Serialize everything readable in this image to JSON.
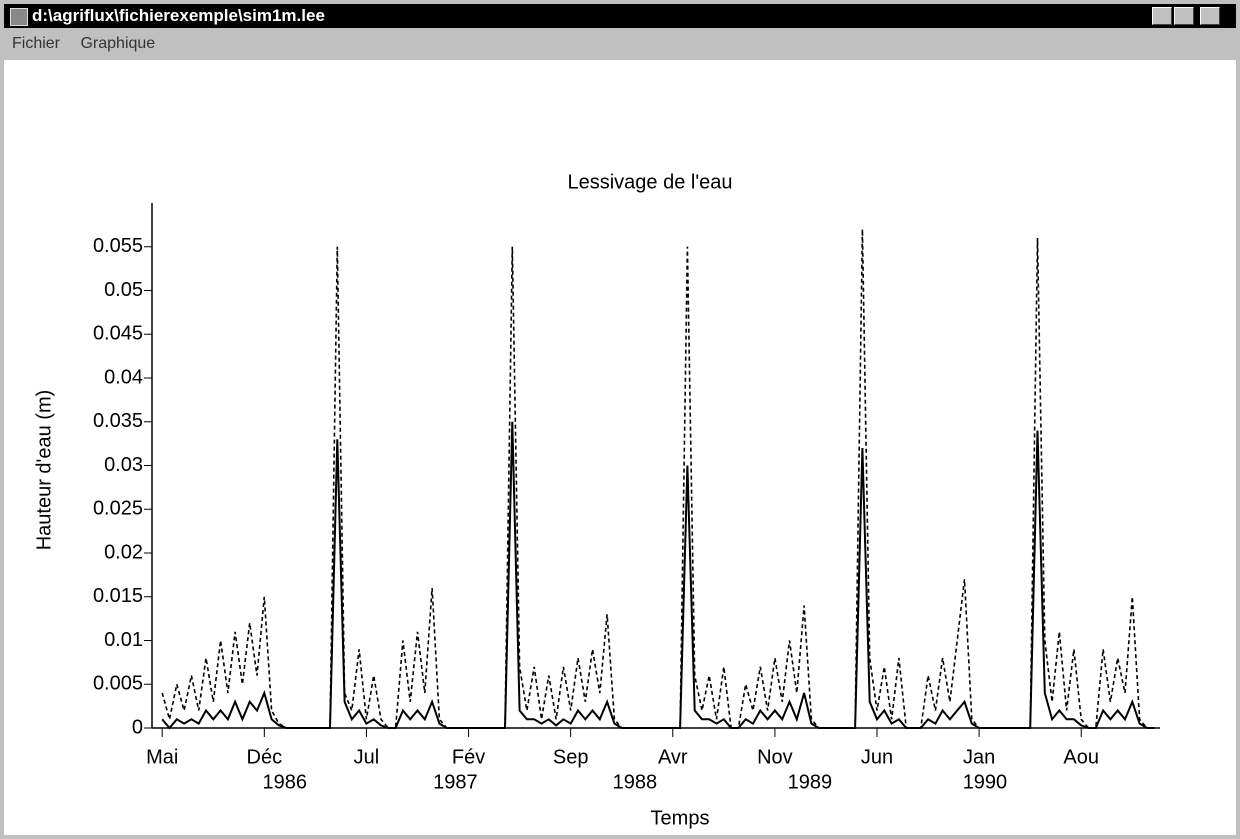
{
  "window": {
    "title": "d:\\agriflux\\fichierexemple\\sim1m.lee",
    "menu": [
      "Fichier",
      "Graphique"
    ]
  },
  "chart_data": {
    "type": "line",
    "title": "Lessivage de l'eau",
    "xlabel": "Temps",
    "ylabel": "Hauteur d'eau (m)",
    "x": [
      0,
      0.5,
      1,
      1.5,
      2,
      2.5,
      3,
      3.5,
      4,
      4.5,
      5,
      5.5,
      6,
      6.5,
      7,
      7.5,
      8,
      8.5,
      9,
      9.5,
      10,
      10.5,
      11,
      11.5,
      12,
      12.5,
      13,
      13.5,
      14,
      14.5,
      15,
      15.5,
      16,
      16.5,
      17,
      17.5,
      18,
      18.5,
      19,
      19.5,
      20,
      20.5,
      21,
      21.5,
      22,
      22.5,
      23,
      23.5,
      24,
      24.5,
      25,
      25.5,
      26,
      26.5,
      27,
      27.5,
      28,
      28.5,
      29,
      29.5,
      30,
      30.5,
      31,
      31.5,
      32,
      32.5,
      33,
      33.5,
      34,
      34.5,
      35,
      35.5,
      36,
      36.5,
      37,
      37.5,
      38,
      38.5,
      39,
      39.5,
      40,
      40.5,
      41,
      41.5,
      42,
      42.5,
      43,
      43.5,
      44,
      44.5,
      45,
      45.5,
      46,
      46.5,
      47,
      47.5,
      48,
      48.5,
      49,
      49.5,
      50,
      50.5,
      51,
      51.5,
      52,
      52.5,
      53,
      53.5,
      54,
      54.5,
      55,
      55.5,
      56,
      56.5,
      57,
      57.5,
      58,
      58.5,
      59,
      59.5,
      60,
      60.5,
      61,
      61.5,
      62,
      62.5,
      63,
      63.5,
      64,
      64.5,
      65,
      65.5,
      66,
      66.5,
      67,
      67.5,
      68
    ],
    "series": [
      {
        "color": "#000000",
        "dash": true,
        "values": [
          0.004,
          0.001,
          0.005,
          0.002,
          0.006,
          0.002,
          0.008,
          0.003,
          0.01,
          0.004,
          0.011,
          0.005,
          0.012,
          0.006,
          0.015,
          0.002,
          0.0005,
          0,
          0,
          0,
          0,
          0,
          0,
          0,
          0.055,
          0.004,
          0.002,
          0.009,
          0.001,
          0.006,
          0.001,
          0,
          0,
          0.01,
          0.003,
          0.011,
          0.004,
          0.016,
          0.001,
          0,
          0,
          0,
          0,
          0,
          0,
          0,
          0,
          0,
          0.055,
          0.007,
          0.002,
          0.007,
          0.001,
          0.006,
          0.001,
          0.007,
          0.002,
          0.008,
          0.003,
          0.009,
          0.004,
          0.013,
          0.001,
          0,
          0,
          0,
          0,
          0,
          0,
          0,
          0,
          0,
          0.055,
          0.006,
          0.002,
          0.006,
          0.001,
          0.007,
          0,
          0,
          0.005,
          0.002,
          0.007,
          0.002,
          0.008,
          0.003,
          0.01,
          0.004,
          0.014,
          0.001,
          0,
          0,
          0,
          0,
          0,
          0,
          0.057,
          0.008,
          0.002,
          0.007,
          0.001,
          0.008,
          0,
          0,
          0,
          0.006,
          0.002,
          0.008,
          0.003,
          0.01,
          0.017,
          0.001,
          0,
          0,
          0,
          0,
          0,
          0,
          0,
          0,
          0.056,
          0.01,
          0.003,
          0.011,
          0.002,
          0.009,
          0.001,
          0,
          0,
          0.009,
          0.003,
          0.008,
          0.004,
          0.015,
          0.001,
          0,
          0
        ]
      },
      {
        "color": "#000000",
        "dash": false,
        "values": [
          0.001,
          0,
          0.001,
          0.0005,
          0.001,
          0.0005,
          0.002,
          0.001,
          0.002,
          0.001,
          0.003,
          0.001,
          0.003,
          0.002,
          0.004,
          0.001,
          0.0003,
          0,
          0,
          0,
          0,
          0,
          0,
          0,
          0.033,
          0.003,
          0.001,
          0.002,
          0.0005,
          0.001,
          0.0003,
          0,
          0,
          0.002,
          0.001,
          0.002,
          0.001,
          0.003,
          0.0005,
          0,
          0,
          0,
          0,
          0,
          0,
          0,
          0,
          0,
          0.035,
          0.002,
          0.001,
          0.001,
          0.0005,
          0.001,
          0.0003,
          0.001,
          0.0005,
          0.002,
          0.001,
          0.002,
          0.001,
          0.003,
          0.0005,
          0,
          0,
          0,
          0,
          0,
          0,
          0,
          0,
          0,
          0.03,
          0.002,
          0.001,
          0.001,
          0.0005,
          0.001,
          0,
          0,
          0.001,
          0.0005,
          0.002,
          0.001,
          0.002,
          0.001,
          0.003,
          0.001,
          0.004,
          0.0005,
          0,
          0,
          0,
          0,
          0,
          0,
          0.032,
          0.003,
          0.001,
          0.002,
          0.0005,
          0.001,
          0,
          0,
          0,
          0.001,
          0.0005,
          0.002,
          0.001,
          0.002,
          0.003,
          0.0005,
          0,
          0,
          0,
          0,
          0,
          0,
          0,
          0,
          0.034,
          0.004,
          0.001,
          0.002,
          0.001,
          0.001,
          0.0003,
          0,
          0,
          0.002,
          0.001,
          0.002,
          0.001,
          0.003,
          0.0005,
          0,
          0
        ]
      }
    ],
    "xlim": [
      -0.7,
      68.4
    ],
    "xticks": [
      {
        "value": 0,
        "label": "Mai"
      },
      {
        "value": 7,
        "label": "Déc"
      },
      {
        "value": 14,
        "label": "Jul"
      },
      {
        "value": 21,
        "label": "Fév"
      },
      {
        "value": 28,
        "label": "Sep"
      },
      {
        "value": 35,
        "label": "Avr"
      },
      {
        "value": 42,
        "label": "Nov"
      },
      {
        "value": 49,
        "label": "Jun"
      },
      {
        "value": 56,
        "label": "Jan"
      },
      {
        "value": 63,
        "label": "Aou"
      }
    ],
    "year_labels": [
      {
        "value": 8.4,
        "label": "1986"
      },
      {
        "value": 20.1,
        "label": "1987"
      },
      {
        "value": 32.4,
        "label": "1988"
      },
      {
        "value": 44.4,
        "label": "1989"
      },
      {
        "value": 56.4,
        "label": "1990"
      }
    ],
    "ylim": [
      0,
      0.06
    ],
    "yticks": [
      0,
      0.005,
      0.01,
      0.015,
      0.02,
      0.025,
      0.03,
      0.035,
      0.04,
      0.045,
      0.05,
      0.055
    ]
  }
}
